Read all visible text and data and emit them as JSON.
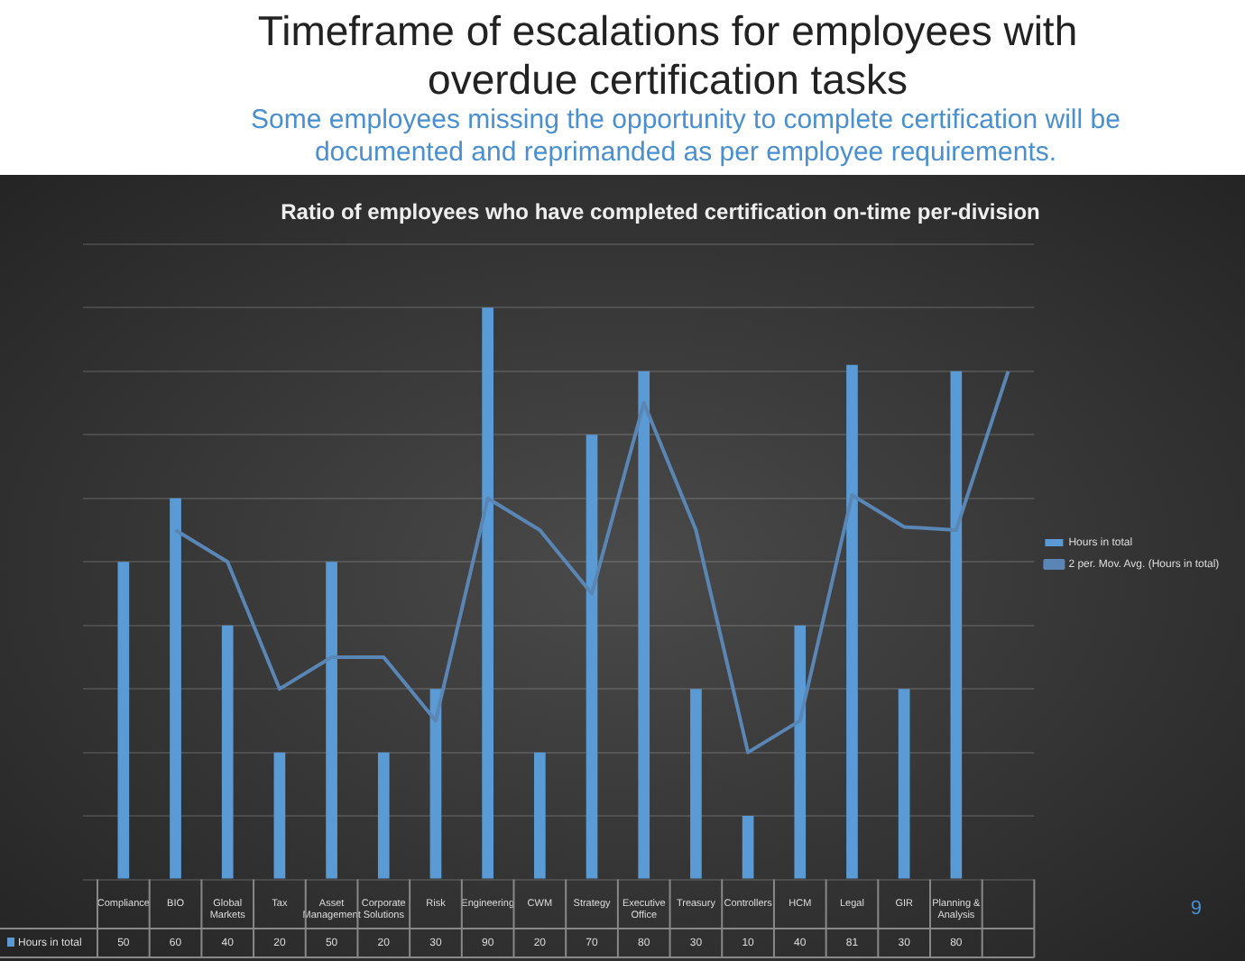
{
  "chart_data": {
    "type": "bar",
    "title": "Timeframe of escalations for employees with overdue certification tasks",
    "subtitle": "Some employees missing the opportunity to complete certification will be documented and reprimanded as per employee requirements.",
    "annotations": [
      "Ratio of employees who have completed certification on-time per-division",
      "9"
    ],
    "categories": [
      "Compliance",
      "BIO",
      "Global Markets",
      "Tax",
      "Asset Management",
      "Corporate Solutions",
      "Risk",
      "Engineering",
      "CWM",
      "Strategy",
      "Executive Office",
      "Treasury",
      "Controllers",
      "HCM",
      "Legal",
      "GIR",
      "Planning & Analysis",
      null
    ],
    "series": [
      {
        "name": "Hours in total",
        "color": "#5b9bd5",
        "values": [
          50,
          60,
          40,
          20,
          50,
          20,
          30,
          90,
          20,
          70,
          80,
          30,
          10,
          40,
          81,
          30,
          80,
          null
        ],
        "value_labels": [
          "50",
          "60",
          "40",
          "20",
          "50",
          "20",
          "30",
          "90",
          "20",
          "70",
          "80",
          "30",
          "10",
          "40",
          "81",
          "30",
          "80",
          null
        ]
      },
      {
        "name": "2 per. Mov. Avg. (Hours in total)",
        "type": "line",
        "color": "#5a86b5",
        "values": [
          null,
          55,
          50,
          30,
          35,
          35,
          25,
          60,
          55,
          45,
          75,
          55,
          20,
          25,
          60.5,
          55.5,
          55,
          80
        ]
      }
    ],
    "ylim": [
      0,
      100
    ],
    "yticks": [
      {
        "value": 0,
        "label": null
      },
      {
        "value": 10,
        "label": null
      },
      {
        "value": 20,
        "label": null
      },
      {
        "value": 30,
        "label": null
      },
      {
        "value": 40,
        "label": null
      },
      {
        "value": 50,
        "label": null
      },
      {
        "value": 60,
        "label": null
      },
      {
        "value": 70,
        "label": null
      },
      {
        "value": 80,
        "label": null
      },
      {
        "value": 90,
        "label": null
      },
      {
        "value": 100,
        "label": null
      }
    ],
    "grid": "y",
    "legend": "right",
    "tick_labels": "x",
    "marker": "none"
  }
}
